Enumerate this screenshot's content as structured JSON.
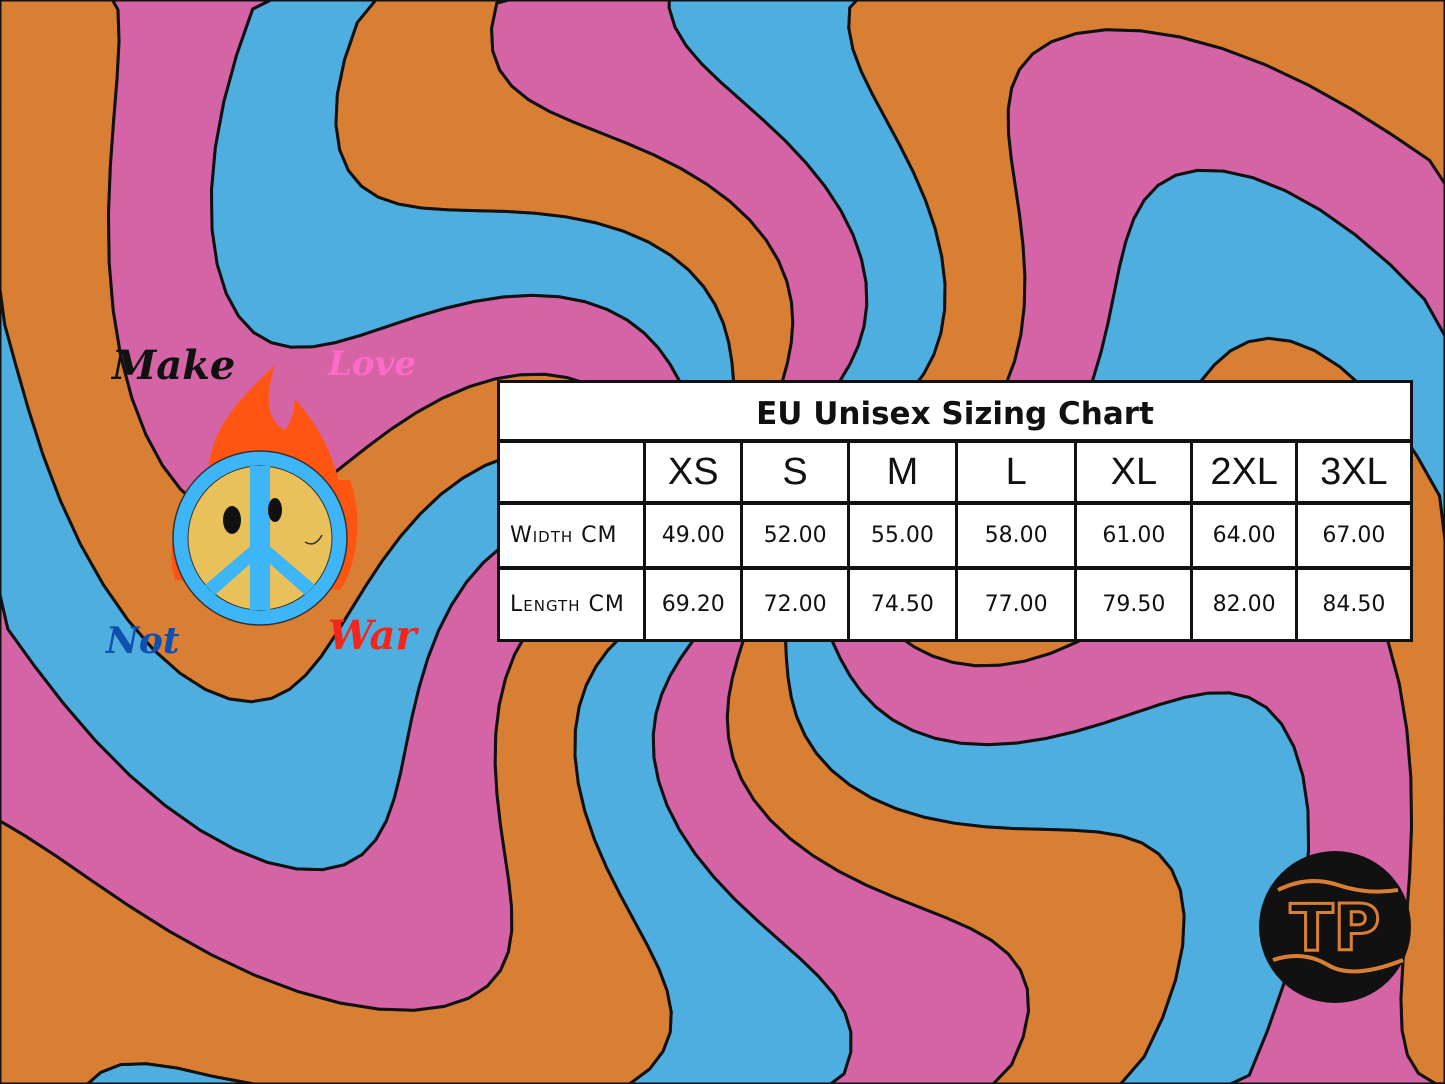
{
  "colors": {
    "orange": "#D97F33",
    "pink": "#D464A5",
    "blue": "#4FAEE0",
    "outline": "#111111"
  },
  "emblem": {
    "words": [
      "Make",
      "Love",
      "Not",
      "War"
    ],
    "icons": [
      "flame-icon",
      "peace-sign-icon",
      "smiley-face-icon"
    ]
  },
  "logo": {
    "text": "TP"
  },
  "chart_data": {
    "type": "table",
    "title": "EU Unisex Sizing Chart",
    "columns": [
      "",
      "XS",
      "S",
      "M",
      "L",
      "XL",
      "2XL",
      "3XL"
    ],
    "rows": [
      {
        "label": "Width CM",
        "values": [
          "49.00",
          "52.00",
          "55.00",
          "58.00",
          "61.00",
          "64.00",
          "67.00"
        ]
      },
      {
        "label": "Length CM",
        "values": [
          "69.20",
          "72.00",
          "74.50",
          "77.00",
          "79.50",
          "82.00",
          "84.50"
        ]
      }
    ]
  }
}
